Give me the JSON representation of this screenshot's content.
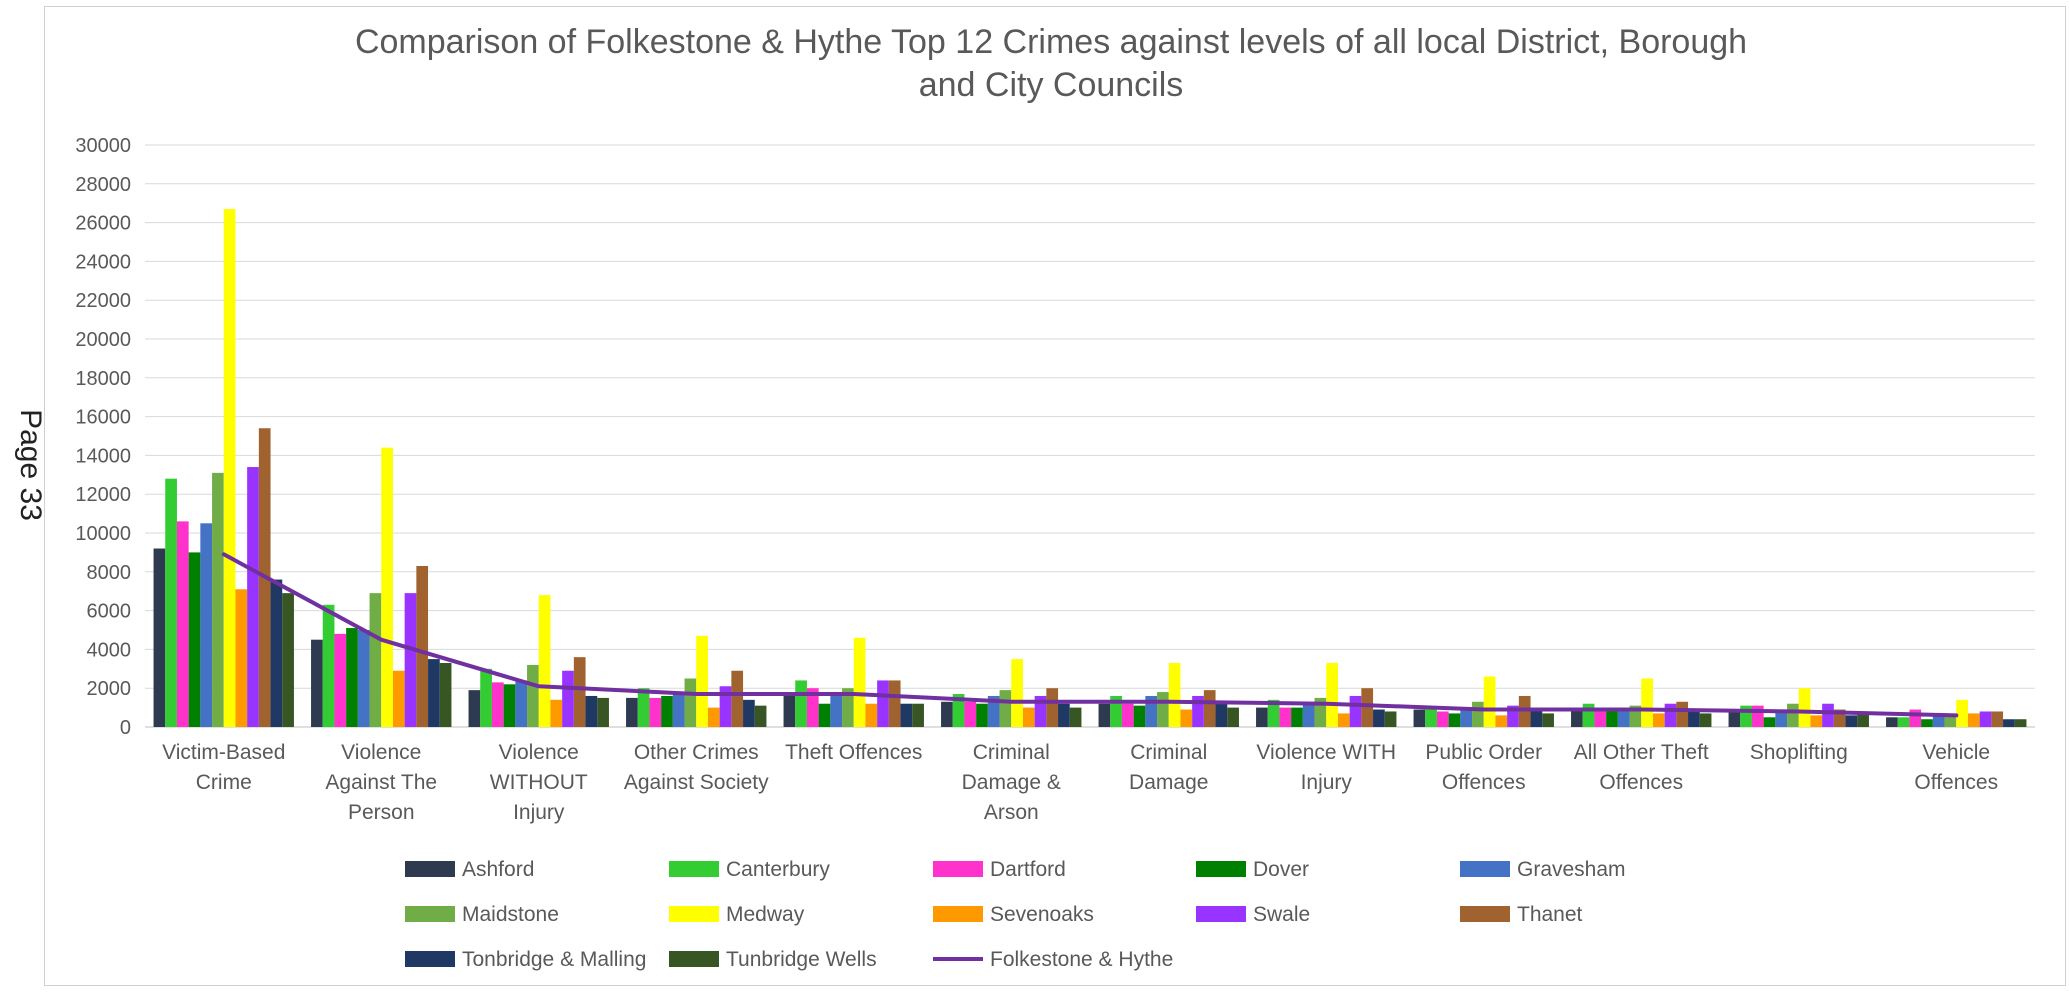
{
  "page_label": "Page 33",
  "chart_data": {
    "type": "bar",
    "title": "Comparison of Folkestone & Hythe Top 12 Crimes against levels of all local District, Borough and City Councils",
    "title_lines": [
      "Comparison of Folkestone & Hythe Top 12 Crimes against levels of all local District, Borough",
      "and City Councils"
    ],
    "xlabel": "",
    "ylabel": "",
    "ylim": [
      0,
      30000
    ],
    "yticks": [
      0,
      2000,
      4000,
      6000,
      8000,
      10000,
      12000,
      14000,
      16000,
      18000,
      20000,
      22000,
      24000,
      26000,
      28000,
      30000
    ],
    "grid": true,
    "legend_position": "bottom",
    "categories": [
      [
        "Victim-Based",
        "Crime"
      ],
      [
        "Violence",
        "Against The",
        "Person"
      ],
      [
        "Violence",
        "WITHOUT",
        "Injury"
      ],
      [
        "Other Crimes",
        "Against Society"
      ],
      [
        "Theft Offences"
      ],
      [
        "Criminal",
        "Damage &",
        "Arson"
      ],
      [
        "Criminal",
        "Damage"
      ],
      [
        "Violence WITH",
        "Injury"
      ],
      [
        "Public Order",
        "Offences"
      ],
      [
        "All Other Theft",
        "Offences"
      ],
      [
        "Shoplifting"
      ],
      [
        "Vehicle",
        "Offences"
      ]
    ],
    "series": [
      {
        "name": "Ashford",
        "color": "#2e3a4f",
        "values": [
          9200,
          4500,
          1900,
          1500,
          1600,
          1300,
          1200,
          1000,
          900,
          900,
          800,
          500
        ]
      },
      {
        "name": "Canterbury",
        "color": "#33cc33",
        "values": [
          12800,
          6300,
          3000,
          2000,
          2400,
          1700,
          1600,
          1400,
          1000,
          1200,
          1100,
          500
        ]
      },
      {
        "name": "Dartford",
        "color": "#ff33cc",
        "values": [
          10600,
          4800,
          2300,
          1500,
          2000,
          1300,
          1200,
          1000,
          800,
          900,
          1100,
          900
        ]
      },
      {
        "name": "Dover",
        "color": "#008000",
        "values": [
          9000,
          5100,
          2200,
          1600,
          1200,
          1200,
          1100,
          1000,
          700,
          800,
          500,
          400
        ]
      },
      {
        "name": "Gravesham",
        "color": "#4472c4",
        "values": [
          10500,
          5000,
          2400,
          1700,
          1800,
          1600,
          1600,
          1200,
          1000,
          900,
          800,
          600
        ]
      },
      {
        "name": "Maidstone",
        "color": "#70ad47",
        "values": [
          13100,
          6900,
          3200,
          2500,
          2000,
          1900,
          1800,
          1500,
          1300,
          1100,
          1200,
          600
        ]
      },
      {
        "name": "Medway",
        "color": "#ffff00",
        "values": [
          26700,
          14400,
          6800,
          4700,
          4600,
          3500,
          3300,
          3300,
          2600,
          2500,
          2000,
          1400
        ]
      },
      {
        "name": "Sevenoaks",
        "color": "#ff9900",
        "values": [
          7100,
          2900,
          1400,
          1000,
          1200,
          1000,
          900,
          700,
          600,
          700,
          600,
          700
        ]
      },
      {
        "name": "Swale",
        "color": "#9933ff",
        "values": [
          13400,
          6900,
          2900,
          2100,
          2400,
          1600,
          1600,
          1600,
          1100,
          1200,
          1200,
          800
        ]
      },
      {
        "name": "Thanet",
        "color": "#a0632f",
        "values": [
          15400,
          8300,
          3600,
          2900,
          2400,
          2000,
          1900,
          2000,
          1600,
          1300,
          900,
          800
        ]
      },
      {
        "name": "Tonbridge & Malling",
        "color": "#1f3864",
        "values": [
          7600,
          3500,
          1600,
          1400,
          1200,
          1200,
          1200,
          900,
          800,
          800,
          600,
          400
        ]
      },
      {
        "name": "Tunbridge Wells",
        "color": "#375623",
        "values": [
          6900,
          3300,
          1500,
          1100,
          1200,
          1000,
          1000,
          800,
          700,
          700,
          700,
          400
        ]
      }
    ],
    "line_series": {
      "name": "Folkestone & Hythe",
      "color": "#7030a0",
      "values": [
        8900,
        4500,
        2100,
        1700,
        1700,
        1300,
        1300,
        1200,
        900,
        900,
        800,
        600
      ]
    }
  }
}
